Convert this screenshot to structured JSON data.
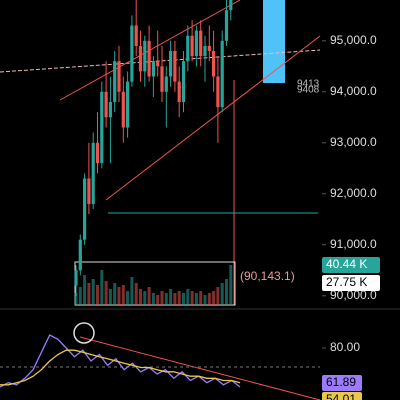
{
  "chart_data": [
    {
      "type": "candlestick",
      "ylim": [
        89800,
        95800
      ],
      "yticks": [
        {
          "value": 95000,
          "label": "95,000.0"
        },
        {
          "value": 94000,
          "label": "94,000.0"
        },
        {
          "value": 93000,
          "label": "93,000.0"
        },
        {
          "value": 92000,
          "label": "92,000.0"
        },
        {
          "value": 91000,
          "label": "91,000.0"
        },
        {
          "value": 90000,
          "label": "90,000.0"
        }
      ],
      "up_color": "#26a69a",
      "down_color": "#ef5350",
      "open": [
        90200,
        90500,
        91100,
        92300,
        91800,
        93000,
        92600,
        94000,
        93500,
        93800,
        94600,
        94000,
        93300,
        94200,
        95300,
        94900,
        94400,
        95000,
        94300,
        94600,
        94500,
        94000,
        94300,
        94800,
        94200,
        93800,
        94600,
        95100,
        94700,
        95200,
        94700,
        94900,
        94800,
        94300,
        93700,
        95000,
        95600
      ],
      "high": [
        90600,
        91200,
        92400,
        93000,
        93200,
        93600,
        94200,
        94600,
        94300,
        94800,
        94900,
        94300,
        94400,
        95500,
        95900,
        95200,
        95100,
        95300,
        94700,
        95200,
        94900,
        94500,
        95000,
        95000,
        94500,
        94800,
        95300,
        95400,
        95300,
        95400,
        95100,
        95300,
        95200,
        94700,
        95200,
        95800,
        96000
      ],
      "low": [
        90000,
        90400,
        91000,
        91600,
        91700,
        92400,
        92500,
        93300,
        92600,
        93600,
        93800,
        93000,
        93100,
        94100,
        94700,
        94200,
        94100,
        94200,
        93900,
        94300,
        93800,
        93300,
        94100,
        94000,
        93500,
        93600,
        94400,
        94600,
        94500,
        94500,
        94200,
        94600,
        94000,
        93000,
        93600,
        94900,
        95400
      ],
      "close": [
        90500,
        91100,
        92300,
        91800,
        93000,
        92600,
        94000,
        93500,
        93800,
        94600,
        94000,
        93300,
        94200,
        95300,
        94900,
        94400,
        95000,
        94300,
        94600,
        94500,
        94000,
        94300,
        94800,
        94200,
        93800,
        94600,
        95100,
        94700,
        95200,
        94700,
        94900,
        94800,
        94300,
        93700,
        95000,
        95600,
        95900
      ],
      "volume": [
        12,
        18,
        30,
        22,
        26,
        20,
        35,
        24,
        16,
        22,
        18,
        20,
        14,
        28,
        22,
        16,
        14,
        18,
        12,
        10,
        14,
        12,
        16,
        12,
        14,
        12,
        16,
        14,
        12,
        14,
        10,
        12,
        14,
        18,
        22,
        26,
        40
      ],
      "volume_lim": [
        0,
        45
      ],
      "volume_badges": [
        "40.44 K",
        "27.75 K"
      ],
      "annotations": [
        "(90,143.1)",
        "9413",
        "9408"
      ]
    },
    {
      "type": "line",
      "ylim": [
        56,
        92
      ],
      "yticks": [
        {
          "value": 80,
          "label": "80.00"
        }
      ],
      "series": [
        {
          "color": "#9c7bff",
          "values": [
            62,
            64,
            63,
            66,
            70,
            78,
            86,
            84,
            80,
            76,
            79,
            74,
            77,
            72,
            75,
            70,
            73,
            69,
            71,
            68,
            70,
            66,
            69,
            65,
            67,
            64,
            66,
            63,
            65,
            62
          ]
        },
        {
          "color": "#e8c84a",
          "values": [
            63,
            63,
            64,
            65,
            67,
            70,
            74,
            77,
            79,
            79,
            78,
            77,
            76,
            75,
            74,
            73,
            72,
            71,
            71,
            70,
            69,
            69,
            68,
            67,
            67,
            66,
            66,
            65,
            65,
            64
          ]
        }
      ],
      "badges": [
        "61.89",
        "54.01"
      ]
    }
  ]
}
